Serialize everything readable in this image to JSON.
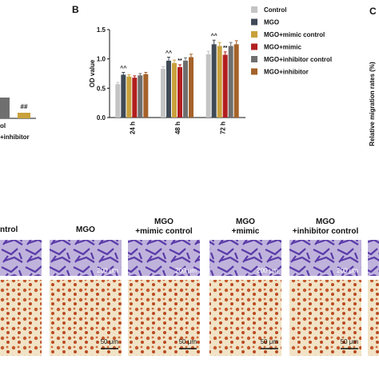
{
  "chart_data": {
    "type": "bar",
    "y_label": "OD value",
    "categories": [
      "24 h",
      "48 h",
      "72 h"
    ],
    "series": [
      {
        "name": "Control",
        "color": "#c4c4c4",
        "values": [
          0.57,
          0.83,
          1.08
        ],
        "errors": [
          0.03,
          0.04,
          0.05
        ]
      },
      {
        "name": "MGO",
        "color": "#3f4a56",
        "values": [
          0.73,
          0.97,
          1.25
        ],
        "errors": [
          0.04,
          0.06,
          0.07
        ]
      },
      {
        "name": "MGO+mimic control",
        "color": "#c9a13c",
        "values": [
          0.7,
          0.93,
          1.22
        ],
        "errors": [
          0.03,
          0.05,
          0.06
        ]
      },
      {
        "name": "MGO+mimic",
        "color": "#b21f1f",
        "values": [
          0.68,
          0.86,
          1.07
        ],
        "errors": [
          0.03,
          0.04,
          0.05
        ]
      },
      {
        "name": "MGO+inhibitor control",
        "color": "#6f6f6f",
        "values": [
          0.72,
          0.97,
          1.22
        ],
        "errors": [
          0.03,
          0.05,
          0.06
        ]
      },
      {
        "name": "MGO+inhibitor",
        "color": "#a5622a",
        "values": [
          0.74,
          1.03,
          1.25
        ],
        "errors": [
          0.03,
          0.05,
          0.06
        ]
      }
    ],
    "annotations": [
      "^^",
      "^^",
      "^^",
      "**",
      "**"
    ],
    "ylim": [
      0,
      1.5
    ],
    "yticks": [
      {
        "value": 0,
        "label": "0.0"
      },
      0.5,
      {
        "value": 1,
        "label": "1.0"
      },
      1.5
    ],
    "grid": false
  },
  "panel_labels": [
    "B",
    "C"
  ],
  "left_panel": {
    "tick_labels": [
      "ol",
      "+inhibitor"
    ],
    "annotation": "##"
  },
  "panel_c": {
    "y_label": "Relative migration rates (%)"
  },
  "images": {
    "columns": [
      [
        "ntrol"
      ],
      [
        "MGO"
      ],
      [
        "MGO",
        "+mimic control"
      ],
      [
        "MGO",
        "+mimic"
      ],
      [
        "MGO",
        "+inhibitor control"
      ]
    ],
    "scale_top": "200 μm",
    "scale_bottom": "50 μm"
  }
}
